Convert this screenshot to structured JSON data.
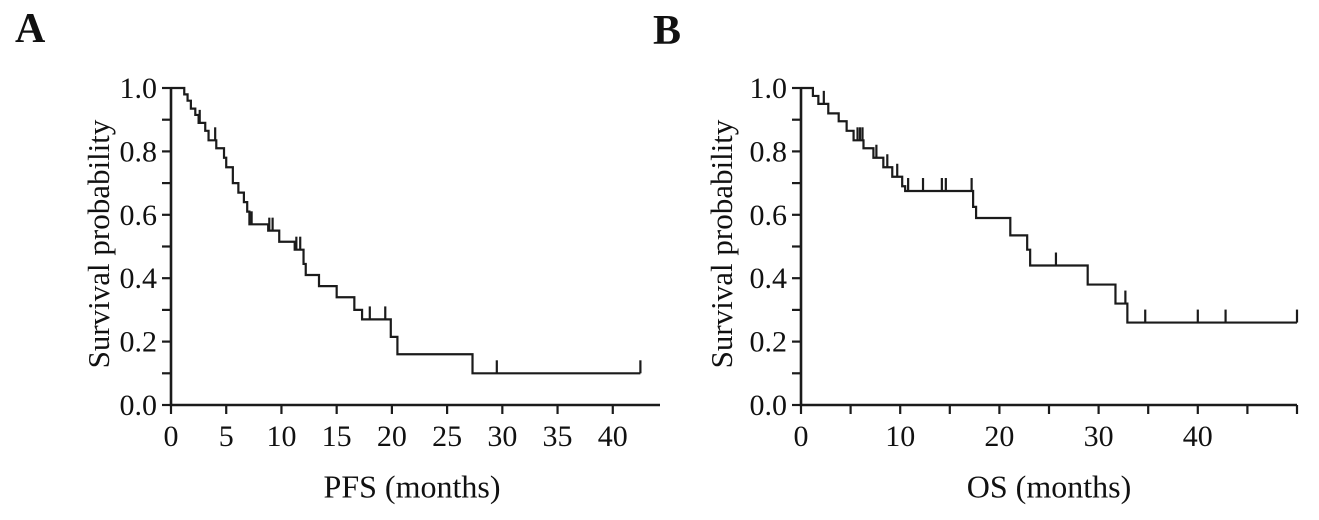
{
  "figure": {
    "background": "#ffffff",
    "ink_color": "#1b1b1b"
  },
  "panels": [
    {
      "letter": "A",
      "xlabel": "PFS (months)",
      "ylabel": "Survival probability"
    },
    {
      "letter": "B",
      "xlabel": "OS (months)",
      "ylabel": "Survival probability"
    }
  ],
  "chart_data": [
    {
      "type": "line",
      "subtype": "kaplan-meier-step-curve",
      "panel": "A",
      "title": "",
      "xlabel": "PFS (months)",
      "ylabel": "Survival probability",
      "xlim": [
        0,
        45
      ],
      "ylim": [
        0.0,
        1.0
      ],
      "grid": false,
      "legend": "none",
      "x_ticks": [
        0,
        5,
        10,
        15,
        20,
        25,
        30,
        35,
        40,
        45
      ],
      "x_tick_labels": [
        {
          "v": 0,
          "label": "0"
        },
        {
          "v": 5,
          "label": "5"
        },
        {
          "v": 10,
          "label": "10"
        },
        {
          "v": 15,
          "label": "15"
        },
        {
          "v": 20,
          "label": "20"
        },
        {
          "v": 25,
          "label": "25"
        },
        {
          "v": 30,
          "label": "30"
        },
        {
          "v": 35,
          "label": "35"
        },
        {
          "v": 40,
          "label": "40"
        }
      ],
      "y_ticks": [
        0.0,
        0.1,
        0.2,
        0.3,
        0.4,
        0.5,
        0.6,
        0.7,
        0.8,
        0.9,
        1.0
      ],
      "y_tick_labels": [
        {
          "v": 0.0,
          "label": "0.0"
        },
        {
          "v": 0.2,
          "label": "0.2"
        },
        {
          "v": 0.4,
          "label": "0.4"
        },
        {
          "v": 0.6,
          "label": "0.6"
        },
        {
          "v": 0.8,
          "label": "0.8"
        },
        {
          "v": 1.0,
          "label": "1.0"
        }
      ],
      "steps": [
        [
          0,
          1.0
        ],
        [
          1.2,
          0.98
        ],
        [
          1.5,
          0.96
        ],
        [
          1.8,
          0.935
        ],
        [
          2.2,
          0.915
        ],
        [
          2.5,
          0.89
        ],
        [
          3.1,
          0.865
        ],
        [
          3.4,
          0.835
        ],
        [
          4.1,
          0.81
        ],
        [
          4.8,
          0.78
        ],
        [
          5.0,
          0.75
        ],
        [
          5.6,
          0.7
        ],
        [
          6.1,
          0.67
        ],
        [
          6.6,
          0.64
        ],
        [
          6.9,
          0.61
        ],
        [
          7.1,
          0.57
        ],
        [
          8.8,
          0.55
        ],
        [
          9.8,
          0.515
        ],
        [
          11.2,
          0.49
        ],
        [
          12.0,
          0.445
        ],
        [
          12.2,
          0.41
        ],
        [
          13.4,
          0.375
        ],
        [
          15.0,
          0.34
        ],
        [
          16.6,
          0.3
        ],
        [
          17.3,
          0.27
        ],
        [
          19.9,
          0.215
        ],
        [
          20.5,
          0.16
        ],
        [
          27.3,
          0.1
        ]
      ],
      "end_time": 42.5,
      "censor_marks": [
        [
          2.6,
          0.89
        ],
        [
          4.0,
          0.835
        ],
        [
          7.3,
          0.57
        ],
        [
          8.9,
          0.55
        ],
        [
          9.2,
          0.55
        ],
        [
          11.35,
          0.49
        ],
        [
          11.7,
          0.49
        ],
        [
          18.0,
          0.27
        ],
        [
          19.4,
          0.27
        ],
        [
          29.5,
          0.1
        ],
        [
          42.5,
          0.1
        ]
      ]
    },
    {
      "type": "line",
      "subtype": "kaplan-meier-step-curve",
      "panel": "B",
      "title": "",
      "xlabel": "OS (months)",
      "ylabel": "Survival probability",
      "xlim": [
        0,
        50
      ],
      "ylim": [
        0.0,
        1.0
      ],
      "grid": false,
      "legend": "none",
      "x_ticks": [
        0,
        5,
        10,
        15,
        20,
        25,
        30,
        35,
        40,
        45,
        50
      ],
      "x_tick_labels": [
        {
          "v": 0,
          "label": "0"
        },
        {
          "v": 10,
          "label": "10"
        },
        {
          "v": 20,
          "label": "20"
        },
        {
          "v": 30,
          "label": "30"
        },
        {
          "v": 40,
          "label": "40"
        }
      ],
      "y_ticks": [
        0.0,
        0.1,
        0.2,
        0.3,
        0.4,
        0.5,
        0.6,
        0.7,
        0.8,
        0.9,
        1.0
      ],
      "y_tick_labels": [
        {
          "v": 0.0,
          "label": "0.0"
        },
        {
          "v": 0.2,
          "label": "0.2"
        },
        {
          "v": 0.4,
          "label": "0.4"
        },
        {
          "v": 0.6,
          "label": "0.6"
        },
        {
          "v": 0.8,
          "label": "0.8"
        },
        {
          "v": 1.0,
          "label": "1.0"
        }
      ],
      "steps": [
        [
          0,
          1.0
        ],
        [
          1.2,
          0.975
        ],
        [
          1.75,
          0.95
        ],
        [
          2.75,
          0.92
        ],
        [
          3.8,
          0.895
        ],
        [
          4.6,
          0.865
        ],
        [
          5.3,
          0.835
        ],
        [
          6.3,
          0.81
        ],
        [
          7.3,
          0.78
        ],
        [
          8.3,
          0.75
        ],
        [
          9.2,
          0.72
        ],
        [
          10.2,
          0.69
        ],
        [
          10.5,
          0.675
        ],
        [
          17.35,
          0.625
        ],
        [
          17.65,
          0.59
        ],
        [
          21.1,
          0.535
        ],
        [
          22.8,
          0.49
        ],
        [
          23.1,
          0.44
        ],
        [
          28.9,
          0.38
        ],
        [
          31.7,
          0.32
        ],
        [
          32.9,
          0.26
        ]
      ],
      "end_time": 50.0,
      "censor_marks": [
        [
          2.3,
          0.95
        ],
        [
          5.7,
          0.835
        ],
        [
          5.95,
          0.835
        ],
        [
          6.2,
          0.835
        ],
        [
          7.6,
          0.78
        ],
        [
          8.7,
          0.75
        ],
        [
          9.7,
          0.72
        ],
        [
          10.8,
          0.675
        ],
        [
          12.3,
          0.675
        ],
        [
          14.2,
          0.675
        ],
        [
          14.6,
          0.675
        ],
        [
          17.2,
          0.675
        ],
        [
          25.7,
          0.44
        ],
        [
          32.7,
          0.32
        ],
        [
          34.7,
          0.26
        ],
        [
          40.0,
          0.26
        ],
        [
          42.8,
          0.26
        ],
        [
          50.0,
          0.26
        ]
      ]
    }
  ]
}
